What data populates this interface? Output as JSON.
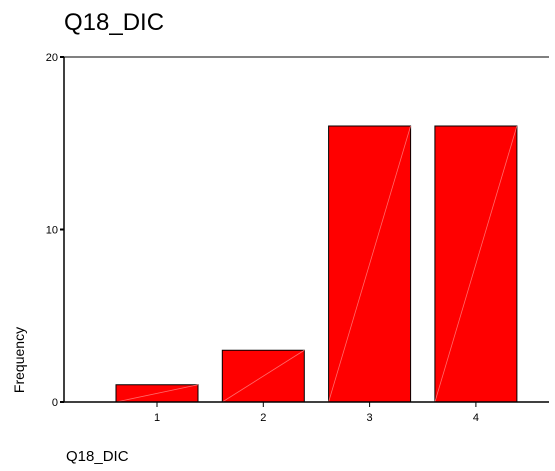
{
  "chart_data": {
    "type": "bar",
    "title": "Q18_DIC",
    "xlabel": "Q18_DIC",
    "ylabel": "Frequency",
    "categories": [
      "1",
      "2",
      "3",
      "4"
    ],
    "values": [
      1,
      3,
      16,
      16
    ],
    "ylim": [
      0,
      20
    ],
    "yticks": [
      "0",
      "10",
      "20"
    ],
    "grid": false,
    "legend": "none",
    "bar_color": "#ff0000"
  }
}
